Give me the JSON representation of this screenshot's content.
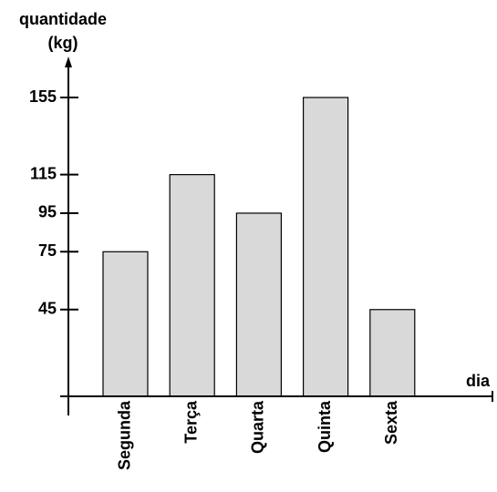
{
  "chart_data": {
    "type": "bar",
    "ylabel_line1": "quantidade",
    "ylabel_line2": "(kg)",
    "xlabel": "dia",
    "categories": [
      "Segunda",
      "Terça",
      "Quarta",
      "Quinta",
      "Sexta"
    ],
    "values": [
      75,
      115,
      95,
      155,
      45
    ],
    "yticks": [
      45,
      75,
      95,
      115,
      155
    ],
    "ylim": [
      0,
      155
    ],
    "grid": false,
    "bar_color": "#d9d9d9",
    "bar_edge_color": "#000000"
  }
}
